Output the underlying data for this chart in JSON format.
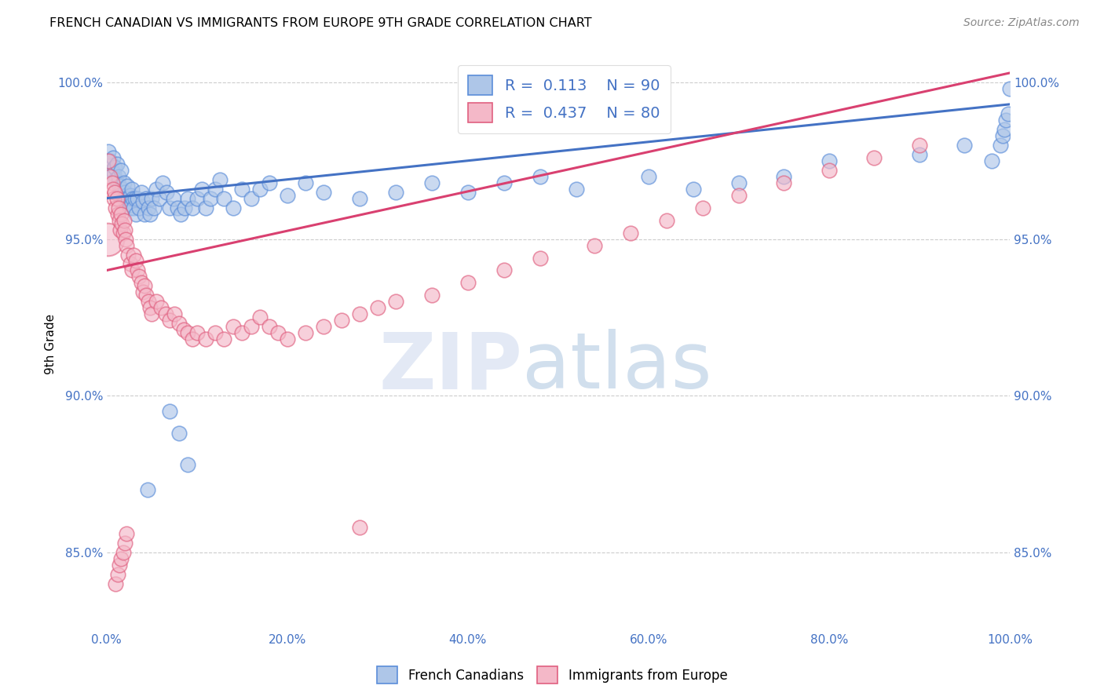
{
  "title": "FRENCH CANADIAN VS IMMIGRANTS FROM EUROPE 9TH GRADE CORRELATION CHART",
  "source": "Source: ZipAtlas.com",
  "ylabel": "9th Grade",
  "xlim": [
    0.0,
    1.0
  ],
  "ylim": [
    0.825,
    1.008
  ],
  "xtick_labels": [
    "0.0%",
    "20.0%",
    "40.0%",
    "60.0%",
    "80.0%",
    "100.0%"
  ],
  "xtick_vals": [
    0.0,
    0.2,
    0.4,
    0.6,
    0.8,
    1.0
  ],
  "ytick_labels": [
    "85.0%",
    "90.0%",
    "95.0%",
    "100.0%"
  ],
  "ytick_vals": [
    0.85,
    0.9,
    0.95,
    1.0
  ],
  "blue_color": "#aec6e8",
  "pink_color": "#f4b8c8",
  "blue_edge_color": "#5b8dd9",
  "pink_edge_color": "#e06080",
  "blue_line_color": "#4472c4",
  "pink_line_color": "#d94070",
  "legend_text_color": "#4472c4",
  "R_blue": "0.113",
  "N_blue": "90",
  "R_pink": "0.437",
  "N_pink": "80",
  "blue_trend_x": [
    0.0,
    1.0
  ],
  "blue_trend_y": [
    0.963,
    0.993
  ],
  "pink_trend_x": [
    0.0,
    1.0
  ],
  "pink_trend_y": [
    0.94,
    1.003
  ],
  "blue_x": [
    0.002,
    0.004,
    0.006,
    0.007,
    0.008,
    0.009,
    0.01,
    0.011,
    0.012,
    0.013,
    0.014,
    0.015,
    0.016,
    0.017,
    0.018,
    0.019,
    0.02,
    0.021,
    0.022,
    0.023,
    0.024,
    0.025,
    0.026,
    0.027,
    0.028,
    0.029,
    0.03,
    0.031,
    0.032,
    0.034,
    0.036,
    0.038,
    0.04,
    0.042,
    0.044,
    0.046,
    0.048,
    0.05,
    0.052,
    0.055,
    0.058,
    0.062,
    0.066,
    0.07,
    0.074,
    0.078,
    0.082,
    0.086,
    0.09,
    0.095,
    0.1,
    0.105,
    0.11,
    0.115,
    0.12,
    0.125,
    0.13,
    0.14,
    0.15,
    0.16,
    0.17,
    0.18,
    0.2,
    0.22,
    0.24,
    0.28,
    0.32,
    0.36,
    0.4,
    0.44,
    0.48,
    0.52,
    0.6,
    0.65,
    0.7,
    0.75,
    0.8,
    0.9,
    0.95,
    0.98,
    0.99,
    0.992,
    0.994,
    0.996,
    0.998,
    1.0,
    0.07,
    0.08,
    0.09,
    0.045
  ],
  "blue_y": [
    0.978,
    0.975,
    0.972,
    0.976,
    0.971,
    0.973,
    0.969,
    0.974,
    0.968,
    0.97,
    0.967,
    0.965,
    0.972,
    0.966,
    0.963,
    0.968,
    0.965,
    0.962,
    0.964,
    0.967,
    0.963,
    0.96,
    0.964,
    0.961,
    0.966,
    0.963,
    0.96,
    0.963,
    0.958,
    0.963,
    0.96,
    0.965,
    0.962,
    0.958,
    0.963,
    0.96,
    0.958,
    0.963,
    0.96,
    0.966,
    0.963,
    0.968,
    0.965,
    0.96,
    0.963,
    0.96,
    0.958,
    0.96,
    0.963,
    0.96,
    0.963,
    0.966,
    0.96,
    0.963,
    0.966,
    0.969,
    0.963,
    0.96,
    0.966,
    0.963,
    0.966,
    0.968,
    0.964,
    0.968,
    0.965,
    0.963,
    0.965,
    0.968,
    0.965,
    0.968,
    0.97,
    0.966,
    0.97,
    0.966,
    0.968,
    0.97,
    0.975,
    0.977,
    0.98,
    0.975,
    0.98,
    0.983,
    0.985,
    0.988,
    0.99,
    0.998,
    0.895,
    0.888,
    0.878,
    0.87
  ],
  "pink_x": [
    0.002,
    0.004,
    0.006,
    0.007,
    0.008,
    0.009,
    0.01,
    0.011,
    0.012,
    0.013,
    0.014,
    0.015,
    0.016,
    0.017,
    0.018,
    0.019,
    0.02,
    0.021,
    0.022,
    0.024,
    0.026,
    0.028,
    0.03,
    0.032,
    0.034,
    0.036,
    0.038,
    0.04,
    0.042,
    0.044,
    0.046,
    0.048,
    0.05,
    0.055,
    0.06,
    0.065,
    0.07,
    0.075,
    0.08,
    0.085,
    0.09,
    0.095,
    0.1,
    0.11,
    0.12,
    0.13,
    0.14,
    0.15,
    0.16,
    0.17,
    0.18,
    0.19,
    0.2,
    0.22,
    0.24,
    0.26,
    0.28,
    0.3,
    0.32,
    0.36,
    0.4,
    0.44,
    0.48,
    0.54,
    0.58,
    0.62,
    0.66,
    0.7,
    0.75,
    0.8,
    0.85,
    0.9,
    0.01,
    0.012,
    0.014,
    0.016,
    0.018,
    0.02,
    0.022,
    0.28
  ],
  "pink_y": [
    0.975,
    0.97,
    0.968,
    0.966,
    0.963,
    0.965,
    0.96,
    0.963,
    0.958,
    0.96,
    0.956,
    0.953,
    0.958,
    0.955,
    0.952,
    0.956,
    0.953,
    0.95,
    0.948,
    0.945,
    0.942,
    0.94,
    0.945,
    0.943,
    0.94,
    0.938,
    0.936,
    0.933,
    0.935,
    0.932,
    0.93,
    0.928,
    0.926,
    0.93,
    0.928,
    0.926,
    0.924,
    0.926,
    0.923,
    0.921,
    0.92,
    0.918,
    0.92,
    0.918,
    0.92,
    0.918,
    0.922,
    0.92,
    0.922,
    0.925,
    0.922,
    0.92,
    0.918,
    0.92,
    0.922,
    0.924,
    0.926,
    0.928,
    0.93,
    0.932,
    0.936,
    0.94,
    0.944,
    0.948,
    0.952,
    0.956,
    0.96,
    0.964,
    0.968,
    0.972,
    0.976,
    0.98,
    0.84,
    0.843,
    0.846,
    0.848,
    0.85,
    0.853,
    0.856,
    0.858
  ],
  "large_pink_x": [
    0.001
  ],
  "large_pink_y": [
    0.95
  ],
  "watermark_zip": "ZIP",
  "watermark_atlas": "atlas"
}
